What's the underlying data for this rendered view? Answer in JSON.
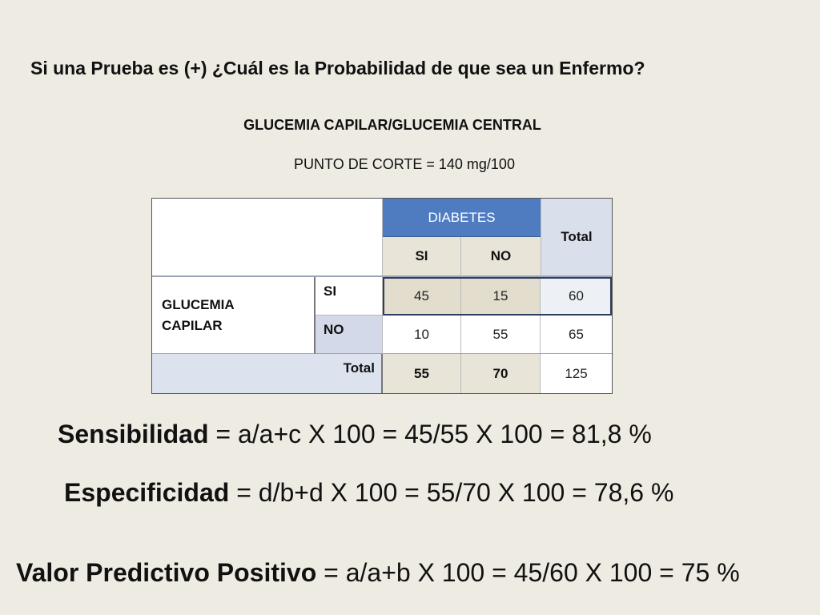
{
  "question": "Si una Prueba es (+) ¿Cuál es la Probabilidad de que sea un Enfermo?",
  "subtitle": "GLUCEMIA CAPILAR/GLUCEMIA CENTRAL",
  "cutoff": "PUNTO DE CORTE = 140 mg/100",
  "table": {
    "diabetes_header": "DIABETES",
    "total_header": "Total",
    "col_si": "SI",
    "col_no": "NO",
    "row_group_line1": "GLUCEMIA",
    "row_group_line2": "CAPILAR",
    "row_si": "SI",
    "row_no": "NO",
    "row_total": "Total",
    "rows": [
      {
        "si": "45",
        "no": "15",
        "total": "60"
      },
      {
        "si": "10",
        "no": "55",
        "total": "65"
      }
    ],
    "totals": {
      "si": "55",
      "no": "70",
      "total": "125"
    }
  },
  "formulas": [
    {
      "term": "Sensibilidad",
      "expression": " = a/a+c X 100 = 45/55 X 100 = 81,8 %"
    },
    {
      "term": "Especificidad",
      "expression": " = d/b+d X 100 = 55/70 X 100 = 78,6 %"
    },
    {
      "term": "Valor Predictivo Positivo",
      "expression": " = a/a+b X 100 = 45/60 X 100 = 75 %"
    }
  ],
  "colors": {
    "background": "#eeebe2",
    "diabetes_header": "#4f7cc1",
    "highlight_row": "#e2ddcc"
  }
}
